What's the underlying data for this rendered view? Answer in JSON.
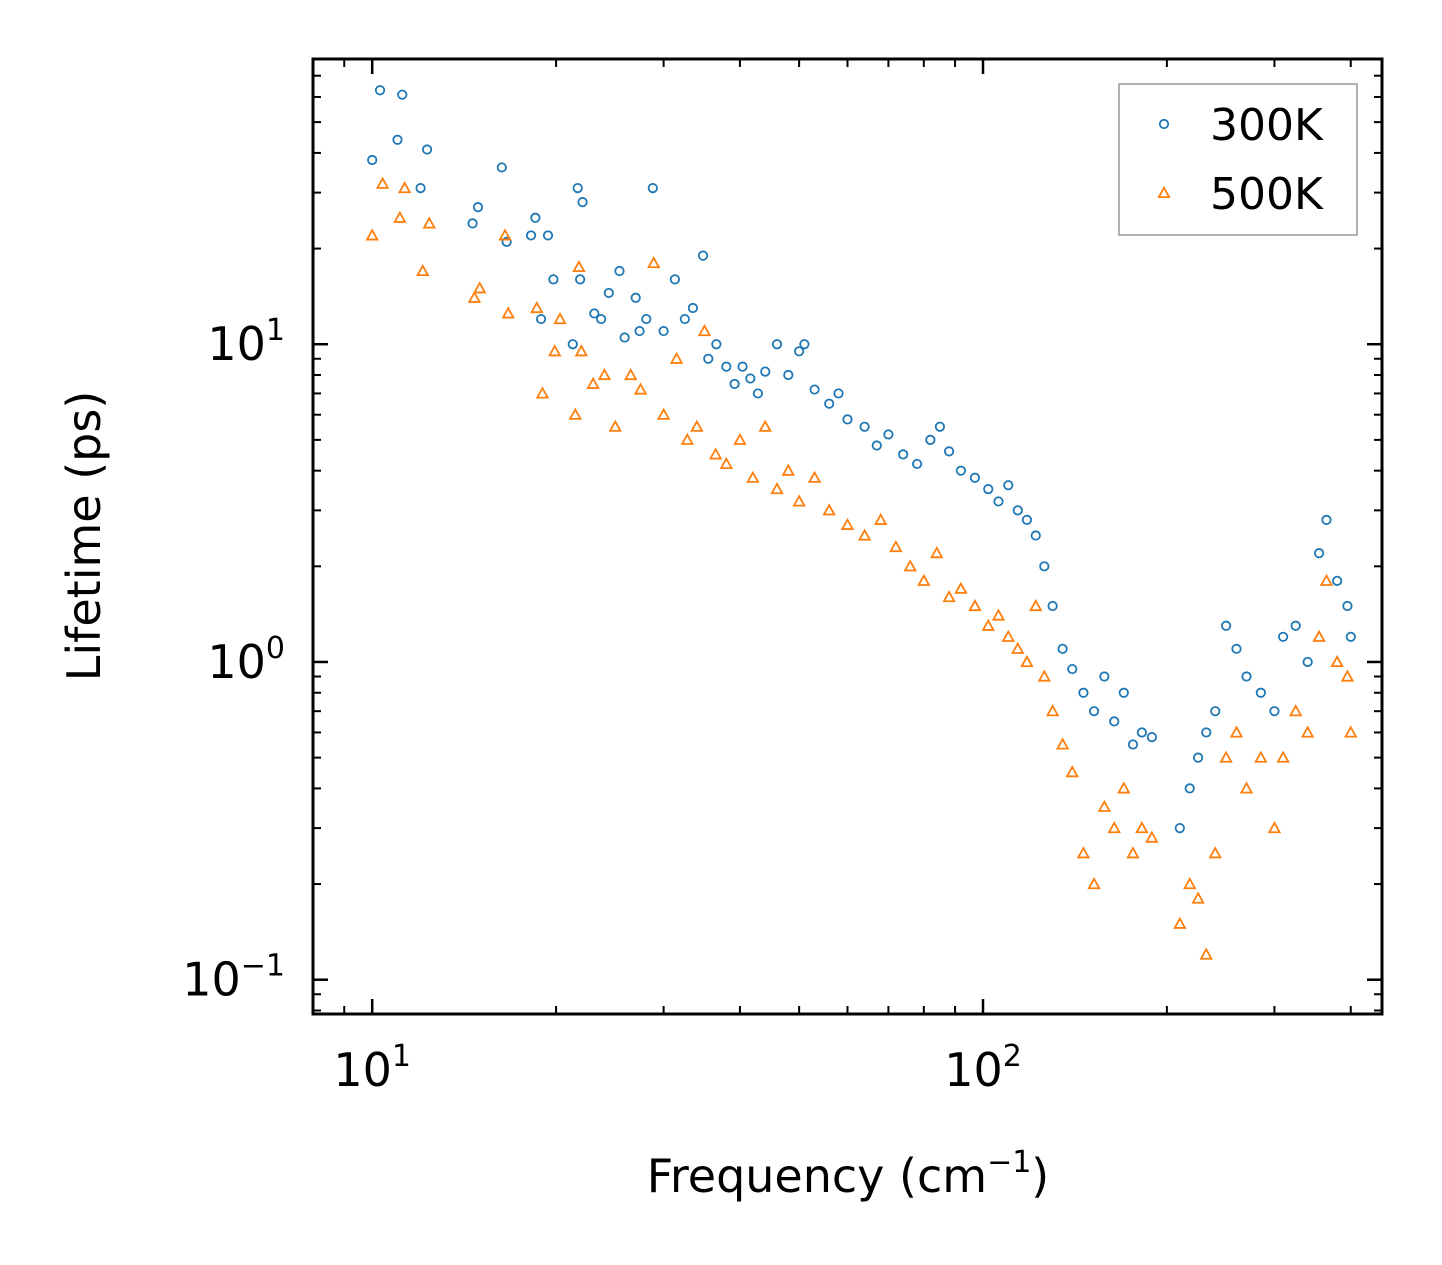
{
  "chart_data": {
    "type": "scatter",
    "title": "",
    "xlabel": "Frequency (cm",
    "xlabel_sup": "−1",
    "xlabel_end": ")",
    "ylabel": "Lifetime (ps)",
    "xscale": "log",
    "yscale": "log",
    "xlim": [
      8.0,
      450.0
    ],
    "ylim": [
      0.078,
      79.0
    ],
    "x_ticks": [
      {
        "value": 10,
        "base": "10",
        "exp": "1"
      },
      {
        "value": 100,
        "base": "10",
        "exp": "2"
      }
    ],
    "y_ticks": [
      {
        "value": 0.1,
        "base": "10",
        "exp": "−1"
      },
      {
        "value": 1,
        "base": "10",
        "exp": "0"
      },
      {
        "value": 10,
        "base": "10",
        "exp": "1"
      }
    ],
    "legend": {
      "position": "top-right"
    },
    "series": [
      {
        "name": "300K",
        "marker": "circle",
        "color": "#1f77b4",
        "points": [
          [
            10.0,
            38.0
          ],
          [
            10.3,
            63.0
          ],
          [
            11.0,
            44.0
          ],
          [
            11.2,
            61.0
          ],
          [
            12.0,
            31.0
          ],
          [
            12.3,
            41.0
          ],
          [
            14.6,
            24.0
          ],
          [
            14.9,
            27.0
          ],
          [
            16.3,
            36.0
          ],
          [
            16.6,
            21.0
          ],
          [
            18.2,
            22.0
          ],
          [
            18.5,
            25.0
          ],
          [
            18.9,
            12.0
          ],
          [
            19.4,
            22.0
          ],
          [
            19.8,
            16.0
          ],
          [
            21.3,
            10.0
          ],
          [
            21.7,
            31.0
          ],
          [
            21.9,
            16.0
          ],
          [
            22.1,
            28.0
          ],
          [
            23.1,
            12.5
          ],
          [
            23.7,
            12.0
          ],
          [
            24.4,
            14.5
          ],
          [
            25.4,
            17.0
          ],
          [
            25.9,
            10.5
          ],
          [
            27.0,
            14.0
          ],
          [
            27.4,
            11.0
          ],
          [
            28.1,
            12.0
          ],
          [
            28.8,
            31.0
          ],
          [
            30.0,
            11.0
          ],
          [
            31.3,
            16.0
          ],
          [
            32.5,
            12.0
          ],
          [
            34.8,
            19.0
          ],
          [
            33.5,
            13.0
          ],
          [
            35.5,
            9.0
          ],
          [
            36.6,
            10.0
          ],
          [
            38.0,
            8.5
          ],
          [
            39.2,
            7.5
          ],
          [
            40.4,
            8.5
          ],
          [
            41.6,
            7.8
          ],
          [
            42.8,
            7.0
          ],
          [
            44.0,
            8.2
          ],
          [
            46.0,
            10.0
          ],
          [
            48.0,
            8.0
          ],
          [
            50.0,
            9.5
          ],
          [
            51.0,
            10.0
          ],
          [
            53.0,
            7.2
          ],
          [
            56.0,
            6.5
          ],
          [
            58.0,
            7.0
          ],
          [
            60.0,
            5.8
          ],
          [
            64.0,
            5.5
          ],
          [
            67.0,
            4.8
          ],
          [
            70.0,
            5.2
          ],
          [
            74.0,
            4.5
          ],
          [
            78.0,
            4.2
          ],
          [
            82.0,
            5.0
          ],
          [
            85.0,
            5.5
          ],
          [
            88.0,
            4.6
          ],
          [
            92.0,
            4.0
          ],
          [
            97.0,
            3.8
          ],
          [
            102.0,
            3.5
          ],
          [
            106.0,
            3.2
          ],
          [
            110.0,
            3.6
          ],
          [
            114.0,
            3.0
          ],
          [
            118.0,
            2.8
          ],
          [
            122.0,
            2.5
          ],
          [
            126.0,
            2.0
          ],
          [
            130.0,
            1.5
          ],
          [
            135.0,
            1.1
          ],
          [
            140.0,
            0.95
          ],
          [
            146.0,
            0.8
          ],
          [
            152.0,
            0.7
          ],
          [
            158.0,
            0.9
          ],
          [
            164.0,
            0.65
          ],
          [
            170.0,
            0.8
          ],
          [
            176.0,
            0.55
          ],
          [
            182.0,
            0.6
          ],
          [
            189.0,
            0.58
          ],
          [
            210.0,
            0.3
          ],
          [
            218.0,
            0.4
          ],
          [
            225.0,
            0.5
          ],
          [
            232.0,
            0.6
          ],
          [
            240.0,
            0.7
          ],
          [
            250.0,
            1.3
          ],
          [
            260.0,
            1.1
          ],
          [
            270.0,
            0.9
          ],
          [
            285.0,
            0.8
          ],
          [
            300.0,
            0.7
          ],
          [
            310.0,
            1.2
          ],
          [
            325.0,
            1.3
          ],
          [
            340.0,
            1.0
          ],
          [
            355.0,
            2.2
          ],
          [
            365.0,
            2.8
          ],
          [
            380.0,
            1.8
          ],
          [
            395.0,
            1.5
          ],
          [
            400.0,
            1.2
          ]
        ]
      },
      {
        "name": "500K",
        "marker": "triangle",
        "color": "#ff7f0e",
        "points": [
          [
            10.0,
            22.0
          ],
          [
            10.4,
            32.0
          ],
          [
            11.1,
            25.0
          ],
          [
            11.3,
            31.0
          ],
          [
            12.1,
            17.0
          ],
          [
            12.4,
            24.0
          ],
          [
            14.7,
            14.0
          ],
          [
            15.0,
            15.0
          ],
          [
            16.5,
            22.0
          ],
          [
            16.7,
            12.5
          ],
          [
            18.6,
            13.0
          ],
          [
            19.0,
            7.0
          ],
          [
            19.9,
            9.5
          ],
          [
            20.3,
            12.0
          ],
          [
            21.5,
            6.0
          ],
          [
            21.8,
            17.5
          ],
          [
            22.0,
            9.5
          ],
          [
            23.0,
            7.5
          ],
          [
            24.0,
            8.0
          ],
          [
            25.0,
            5.5
          ],
          [
            26.5,
            8.0
          ],
          [
            27.5,
            7.2
          ],
          [
            28.9,
            18.0
          ],
          [
            30.0,
            6.0
          ],
          [
            31.5,
            9.0
          ],
          [
            32.8,
            5.0
          ],
          [
            34.0,
            5.5
          ],
          [
            35.0,
            11.0
          ],
          [
            36.5,
            4.5
          ],
          [
            38.0,
            4.2
          ],
          [
            40.0,
            5.0
          ],
          [
            42.0,
            3.8
          ],
          [
            44.0,
            5.5
          ],
          [
            46.0,
            3.5
          ],
          [
            48.0,
            4.0
          ],
          [
            50.0,
            3.2
          ],
          [
            53.0,
            3.8
          ],
          [
            56.0,
            3.0
          ],
          [
            60.0,
            2.7
          ],
          [
            64.0,
            2.5
          ],
          [
            68.0,
            2.8
          ],
          [
            72.0,
            2.3
          ],
          [
            76.0,
            2.0
          ],
          [
            80.0,
            1.8
          ],
          [
            84.0,
            2.2
          ],
          [
            88.0,
            1.6
          ],
          [
            92.0,
            1.7
          ],
          [
            97.0,
            1.5
          ],
          [
            102.0,
            1.3
          ],
          [
            106.0,
            1.4
          ],
          [
            110.0,
            1.2
          ],
          [
            114.0,
            1.1
          ],
          [
            118.0,
            1.0
          ],
          [
            122.0,
            1.5
          ],
          [
            126.0,
            0.9
          ],
          [
            130.0,
            0.7
          ],
          [
            135.0,
            0.55
          ],
          [
            140.0,
            0.45
          ],
          [
            146.0,
            0.25
          ],
          [
            152.0,
            0.2
          ],
          [
            158.0,
            0.35
          ],
          [
            164.0,
            0.3
          ],
          [
            170.0,
            0.4
          ],
          [
            176.0,
            0.25
          ],
          [
            182.0,
            0.3
          ],
          [
            189.0,
            0.28
          ],
          [
            210.0,
            0.15
          ],
          [
            218.0,
            0.2
          ],
          [
            225.0,
            0.18
          ],
          [
            232.0,
            0.12
          ],
          [
            240.0,
            0.25
          ],
          [
            250.0,
            0.5
          ],
          [
            260.0,
            0.6
          ],
          [
            270.0,
            0.4
          ],
          [
            285.0,
            0.5
          ],
          [
            300.0,
            0.3
          ],
          [
            310.0,
            0.5
          ],
          [
            325.0,
            0.7
          ],
          [
            340.0,
            0.6
          ],
          [
            355.0,
            1.2
          ],
          [
            365.0,
            1.8
          ],
          [
            380.0,
            1.0
          ],
          [
            395.0,
            0.9
          ],
          [
            400.0,
            0.6
          ]
        ]
      }
    ]
  }
}
